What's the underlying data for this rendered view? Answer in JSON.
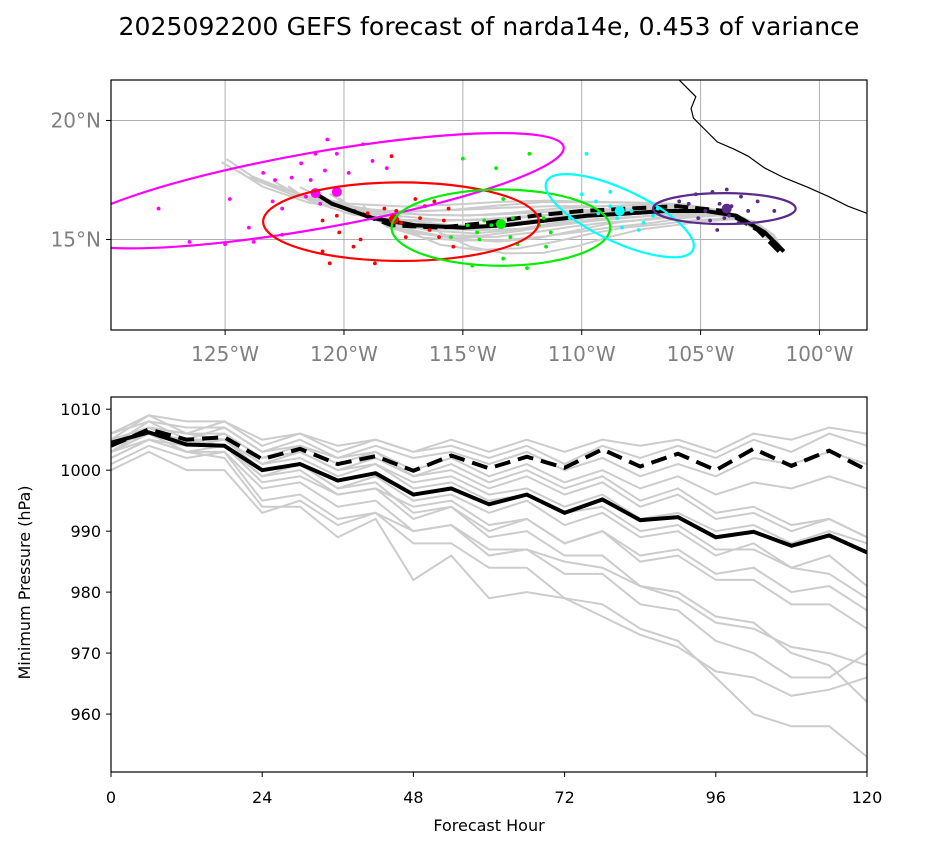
{
  "title": "2025092200 GEFS forecast of narda14e, 0.453 of variance",
  "colors": {
    "member": "#cccccc",
    "mean": "#000000",
    "forecast_hours_colors": [
      "#ff00ff",
      "#ff0000",
      "#00ee00",
      "#00ffff",
      "#5b2a8a"
    ]
  },
  "chart_data": [
    {
      "type": "scatter",
      "name": "track map",
      "xlim": [
        -129.8,
        -98.0
      ],
      "ylim": [
        11.2,
        21.7
      ],
      "x_ticks": [
        -125,
        -120,
        -115,
        -110,
        -105,
        -100
      ],
      "x_tick_labels": [
        "125°W",
        "120°W",
        "115°W",
        "110°W",
        "105°W",
        "100°W"
      ],
      "y_ticks": [
        15,
        20
      ],
      "y_tick_labels": [
        "15°N",
        "20°N"
      ],
      "grid": true,
      "mean_track": [
        [
          -101.5,
          14.5
        ],
        [
          -102.3,
          15.3
        ],
        [
          -103.5,
          16.0
        ],
        [
          -104.8,
          16.2
        ],
        [
          -106.5,
          16.2
        ],
        [
          -108.0,
          16.1
        ],
        [
          -109.8,
          16.0
        ],
        [
          -111.5,
          15.8
        ],
        [
          -113.2,
          15.6
        ],
        [
          -115.0,
          15.5
        ],
        [
          -117.0,
          15.6
        ],
        [
          -118.8,
          15.9
        ],
        [
          -120.5,
          16.5
        ],
        [
          -121.3,
          17.0
        ]
      ],
      "control_track": [
        [
          -101.7,
          14.5
        ],
        [
          -102.6,
          15.4
        ],
        [
          -104.0,
          16.2
        ],
        [
          -106.0,
          16.4
        ],
        [
          -108.0,
          16.3
        ],
        [
          -110.0,
          16.2
        ],
        [
          -112.0,
          16.0
        ],
        [
          -114.0,
          15.7
        ],
        [
          -116.0,
          15.5
        ],
        [
          -118.0,
          15.6
        ],
        [
          -119.6,
          16.2
        ]
      ],
      "forecast_points": [
        {
          "color": "#ff00ff",
          "mean": [
            -120.3,
            17.0
          ],
          "ellipse": {
            "center": [
              -121.2,
              17.05
            ],
            "rx_deg": 10.6,
            "ry_deg": 1.6,
            "angle_deg": 10
          }
        },
        {
          "color": "#ff00ff",
          "mean": [
            -121.2,
            16.95
          ]
        },
        {
          "color": "#ff0000",
          "mean": [
            -117.9,
            15.85
          ],
          "ellipse": {
            "center": [
              -117.6,
              15.75
            ],
            "rx_deg": 5.8,
            "ry_deg": 1.65,
            "angle_deg": 0
          }
        },
        {
          "color": "#00ee00",
          "mean": [
            -113.4,
            15.65
          ],
          "ellipse": {
            "center": [
              -113.4,
              15.5
            ],
            "rx_deg": 4.6,
            "ry_deg": 1.6,
            "angle_deg": 0
          }
        },
        {
          "color": "#00ffff",
          "mean": [
            -108.4,
            16.2
          ],
          "ellipse": {
            "center": [
              -108.4,
              16.0
            ],
            "rx_deg": 3.4,
            "ry_deg": 1.1,
            "angle_deg": -25
          }
        },
        {
          "color": "#5b2a8a",
          "mean": [
            -103.9,
            16.3
          ],
          "ellipse": {
            "center": [
              -104.0,
              16.3
            ],
            "rx_deg": 3.0,
            "ry_deg": 0.65,
            "angle_deg": 0
          }
        }
      ],
      "member_points": {
        "magenta": [
          [
            -127.8,
            16.3
          ],
          [
            -126.5,
            14.9
          ],
          [
            -125.0,
            14.8
          ],
          [
            -123.8,
            14.9
          ],
          [
            -122.6,
            15.2
          ],
          [
            -124.8,
            16.7
          ],
          [
            -123.0,
            16.6
          ],
          [
            -121.6,
            16.8
          ],
          [
            -122.2,
            17.6
          ],
          [
            -121.4,
            17.5
          ],
          [
            -120.8,
            17.9
          ],
          [
            -121.8,
            18.2
          ],
          [
            -121.2,
            18.6
          ],
          [
            -120.3,
            18.6
          ],
          [
            -119.2,
            19.0
          ],
          [
            -120.7,
            19.2
          ],
          [
            -122.9,
            17.5
          ],
          [
            -123.4,
            17.8
          ],
          [
            -122.6,
            16.3
          ],
          [
            -121.0,
            16.5
          ],
          [
            -119.8,
            17.8
          ],
          [
            -118.8,
            18.3
          ],
          [
            -118.2,
            18.0
          ],
          [
            -124.0,
            15.5
          ]
        ],
        "red": [
          [
            -120.6,
            14.0
          ],
          [
            -120.9,
            14.5
          ],
          [
            -120.2,
            15.3
          ],
          [
            -120.9,
            15.8
          ],
          [
            -119.6,
            14.7
          ],
          [
            -118.7,
            14.0
          ],
          [
            -119.3,
            15.0
          ],
          [
            -118.3,
            16.3
          ],
          [
            -117.6,
            15.7
          ],
          [
            -116.8,
            15.9
          ],
          [
            -116.4,
            15.4
          ],
          [
            -117.4,
            15.1
          ],
          [
            -115.6,
            16.3
          ],
          [
            -115.8,
            15.8
          ],
          [
            -116.2,
            16.6
          ],
          [
            -117.0,
            16.7
          ],
          [
            -118.0,
            18.5
          ],
          [
            -120.3,
            16.0
          ],
          [
            -121.1,
            16.9
          ],
          [
            -115.4,
            14.7
          ],
          [
            -116.0,
            15.1
          ],
          [
            -117.8,
            16.2
          ],
          [
            -119.0,
            16.1
          ],
          [
            -116.6,
            16.4
          ]
        ],
        "green": [
          [
            -115.0,
            18.4
          ],
          [
            -113.6,
            18.0
          ],
          [
            -112.2,
            18.6
          ],
          [
            -113.3,
            16.7
          ],
          [
            -111.8,
            15.6
          ],
          [
            -112.7,
            14.8
          ],
          [
            -111.5,
            14.7
          ],
          [
            -112.3,
            13.8
          ],
          [
            -113.3,
            14.2
          ],
          [
            -114.6,
            13.9
          ],
          [
            -114.3,
            15.0
          ],
          [
            -115.5,
            15.1
          ],
          [
            -114.4,
            15.3
          ],
          [
            -113.0,
            15.1
          ],
          [
            -111.6,
            15.9
          ],
          [
            -112.9,
            15.9
          ],
          [
            -114.1,
            15.8
          ],
          [
            -111.3,
            15.3
          ],
          [
            -113.8,
            15.6
          ],
          [
            -114.8,
            15.6
          ]
        ],
        "cyan": [
          [
            -110.0,
            16.9
          ],
          [
            -110.5,
            15.9
          ],
          [
            -109.8,
            18.6
          ],
          [
            -108.8,
            16.4
          ],
          [
            -107.9,
            16.2
          ],
          [
            -107.4,
            15.7
          ],
          [
            -107.6,
            15.4
          ],
          [
            -108.3,
            15.5
          ],
          [
            -109.3,
            16.1
          ],
          [
            -108.5,
            15.9
          ],
          [
            -107.0,
            16.0
          ],
          [
            -106.8,
            16.3
          ],
          [
            -108.8,
            17.0
          ],
          [
            -109.4,
            16.6
          ]
        ],
        "purple": [
          [
            -105.2,
            16.9
          ],
          [
            -104.5,
            17.0
          ],
          [
            -103.9,
            17.1
          ],
          [
            -103.3,
            16.8
          ],
          [
            -102.6,
            16.6
          ],
          [
            -104.2,
            16.5
          ],
          [
            -103.7,
            16.4
          ],
          [
            -104.8,
            16.2
          ],
          [
            -105.5,
            16.5
          ],
          [
            -104.0,
            15.9
          ],
          [
            -103.4,
            15.7
          ],
          [
            -104.6,
            15.8
          ],
          [
            -105.1,
            15.9
          ],
          [
            -103.0,
            16.2
          ],
          [
            -101.9,
            16.2
          ],
          [
            -104.3,
            15.4
          ],
          [
            -103.8,
            16.0
          ],
          [
            -105.9,
            16.6
          ]
        ]
      },
      "coastline": [
        [
          -98.0,
          16.1
        ],
        [
          -98.8,
          16.4
        ],
        [
          -99.6,
          16.8
        ],
        [
          -100.5,
          17.2
        ],
        [
          -101.5,
          17.6
        ],
        [
          -102.3,
          18.0
        ],
        [
          -103.0,
          18.5
        ],
        [
          -103.6,
          18.8
        ],
        [
          -104.3,
          19.1
        ],
        [
          -104.9,
          19.7
        ],
        [
          -105.3,
          20.1
        ],
        [
          -105.4,
          20.5
        ],
        [
          -105.2,
          21.0
        ],
        [
          -105.6,
          21.4
        ],
        [
          -105.9,
          21.7
        ]
      ]
    },
    {
      "type": "line",
      "name": "minimum pressure",
      "xlabel": "Forecast Hour",
      "ylabel": "Minimum Pressure (hPa)",
      "xlim": [
        0,
        120
      ],
      "ylim": [
        950.5,
        1012
      ],
      "x_ticks": [
        0,
        24,
        48,
        72,
        96,
        120
      ],
      "y_ticks": [
        960,
        970,
        980,
        990,
        1000,
        1010
      ],
      "grid": false,
      "x": [
        0,
        6,
        12,
        18,
        24,
        30,
        36,
        42,
        48,
        54,
        60,
        66,
        72,
        78,
        84,
        90,
        96,
        102,
        108,
        114,
        120
      ],
      "mean": [
        1004.5,
        1006.2,
        1004.2,
        1004.0,
        1000.0,
        1001.0,
        998.3,
        999.5,
        996.0,
        997.0,
        994.4,
        996.0,
        993.0,
        995.2,
        991.8,
        992.3,
        989.0,
        989.9,
        987.6,
        989.3,
        986.5
      ],
      "control": [
        1004.0,
        1006.7,
        1005.0,
        1005.4,
        1001.8,
        1003.5,
        1001.0,
        1002.3,
        999.9,
        1002.4,
        1000.3,
        1002.2,
        1000.4,
        1003.4,
        1000.6,
        1002.7,
        1000.0,
        1003.5,
        1000.7,
        1003.2,
        1000.0
      ],
      "members": [
        [
          1005,
          1009,
          1006,
          1008,
          1004,
          1006,
          1003,
          1005,
          1003,
          1004,
          1002,
          1004,
          1001,
          1004,
          1002,
          1004,
          1002,
          1005,
          1003,
          1006,
          1004
        ],
        [
          1004,
          1008,
          1005,
          1007,
          1003,
          1005,
          1002,
          1004,
          1002,
          1003,
          1001,
          1003,
          1000,
          1002,
          999,
          1001,
          999,
          1002,
          1001,
          1003,
          1001
        ],
        [
          1003,
          1007,
          1004,
          1006,
          1002,
          1004,
          1001,
          1003,
          1000,
          1002,
          999,
          1001,
          998,
          1000,
          997,
          999,
          996,
          998,
          997,
          999,
          997
        ],
        [
          1006,
          1008,
          1007,
          1007,
          1003,
          1004,
          1002,
          1003,
          999,
          1000,
          997,
          999,
          996,
          998,
          994,
          996,
          992,
          993,
          990,
          992,
          989
        ],
        [
          1002,
          1005,
          1003,
          1004,
          999,
          1001,
          997,
          999,
          995,
          996,
          993,
          995,
          991,
          993,
          989,
          990,
          986,
          988,
          984,
          986,
          981
        ],
        [
          1004,
          1006,
          1005,
          1004,
          998,
          999,
          996,
          997,
          992,
          994,
          990,
          992,
          988,
          990,
          986,
          987,
          983,
          984,
          980,
          981,
          977
        ],
        [
          1003,
          1007,
          1004,
          1005,
          1001,
          1002,
          999,
          1001,
          997,
          998,
          995,
          996,
          993,
          994,
          990,
          991,
          987,
          987,
          984,
          983,
          979
        ],
        [
          1005,
          1007,
          1006,
          1005,
          1000,
          1001,
          997,
          998,
          993,
          994,
          989,
          990,
          986,
          986,
          981,
          980,
          976,
          975,
          970,
          968,
          962
        ],
        [
          1001,
          1004,
          1002,
          1003,
          997,
          998,
          994,
          995,
          990,
          991,
          986,
          987,
          983,
          983,
          978,
          977,
          972,
          970,
          966,
          966,
          970
        ],
        [
          1004,
          1006,
          1003,
          1003,
          995,
          996,
          992,
          993,
          988,
          988,
          984,
          984,
          979,
          978,
          974,
          972,
          966,
          960,
          958,
          958,
          953
        ],
        [
          1002,
          1005,
          1003,
          1002,
          994,
          994,
          989,
          992,
          982,
          986,
          979,
          980,
          979,
          976,
          973,
          971,
          967,
          966,
          963,
          964,
          966
        ],
        [
          1000,
          1003,
          1000,
          1000,
          993,
          995,
          991,
          993,
          990,
          991,
          987,
          987,
          985,
          984,
          981,
          979,
          975,
          974,
          971,
          970,
          968
        ],
        [
          1003,
          1006,
          1005,
          1005,
          1001,
          1003,
          1000,
          1001,
          998,
          999,
          996,
          997,
          994,
          996,
          992,
          993,
          990,
          991,
          988,
          990,
          988
        ],
        [
          1004,
          1007,
          1006,
          1006,
          1002,
          1003,
          1000,
          1002,
          999,
          1001,
          998,
          1000,
          997,
          999,
          995,
          997,
          993,
          994,
          991,
          992,
          989
        ],
        [
          1003,
          1005,
          1004,
          1004,
          999,
          1000,
          996,
          997,
          994,
          995,
          991,
          992,
          988,
          990,
          985,
          986,
          982,
          982,
          978,
          978,
          974
        ],
        [
          1006,
          1009,
          1008,
          1008,
          1005,
          1006,
          1004,
          1005,
          1003,
          1005,
          1003,
          1005,
          1003,
          1005,
          1004,
          1005,
          1003,
          1006,
          1005,
          1007,
          1006
        ]
      ]
    }
  ]
}
